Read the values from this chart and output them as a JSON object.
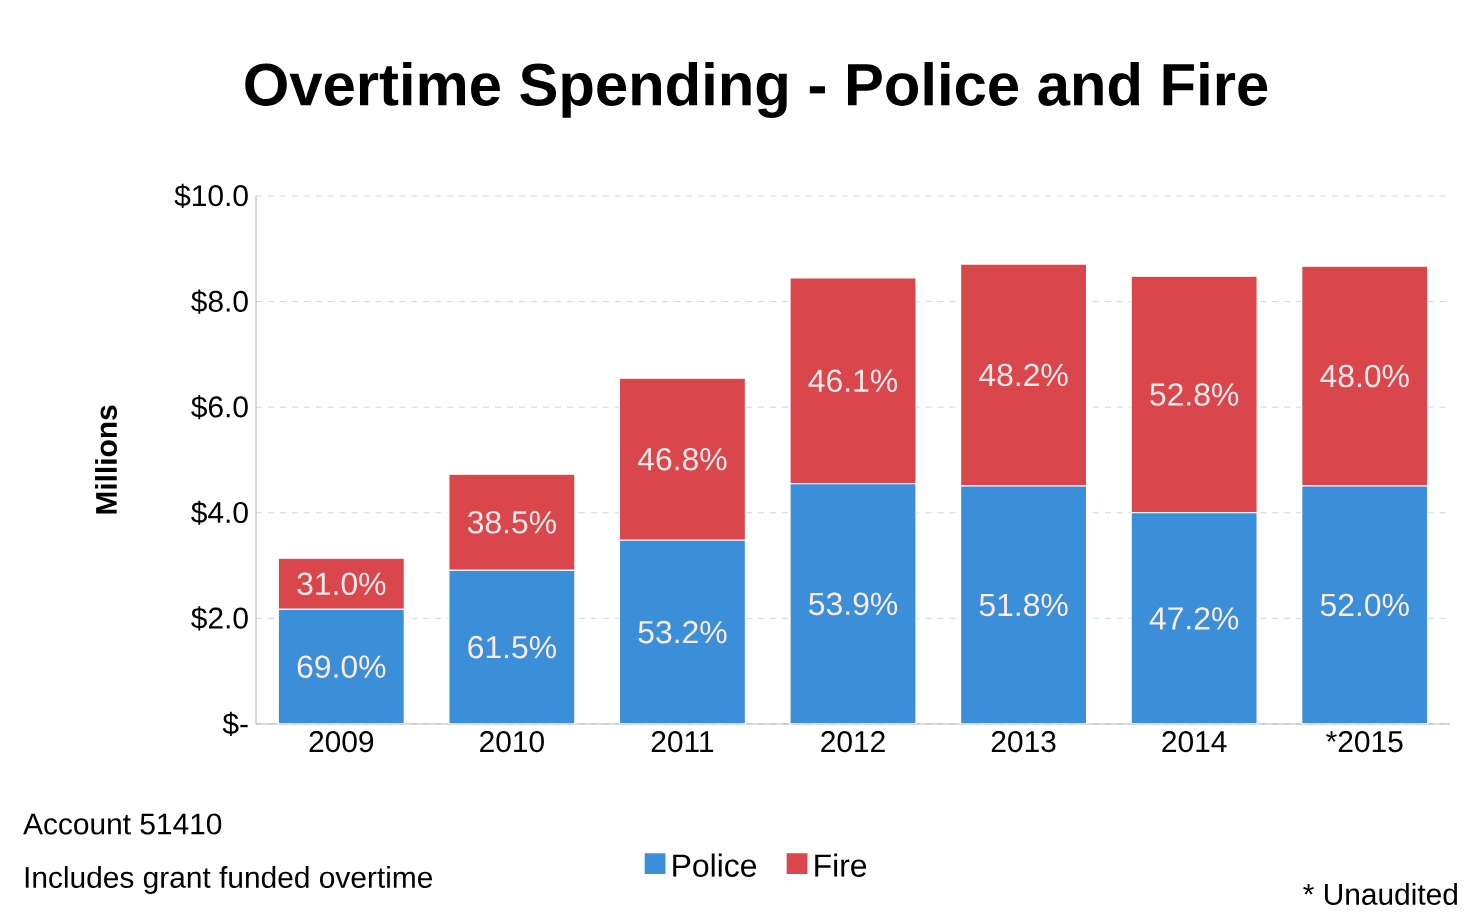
{
  "chart_data": {
    "type": "bar",
    "stacked": true,
    "title": "Overtime Spending - Police and Fire",
    "ylabel": "Millions",
    "categories": [
      "2009",
      "2010",
      "2011",
      "2012",
      "2013",
      "2014",
      "*2015"
    ],
    "series": [
      {
        "name": "Police",
        "color": "#3a8fd8",
        "values": [
          2.17,
          2.91,
          3.48,
          4.55,
          4.51,
          4.0,
          4.51
        ]
      },
      {
        "name": "Fire",
        "color": "#d9464b",
        "values": [
          0.97,
          1.82,
          3.07,
          3.9,
          4.2,
          4.48,
          4.16
        ]
      }
    ],
    "ylim": [
      0,
      10
    ],
    "yticks": [
      {
        "value": 0,
        "label": "$-"
      },
      {
        "value": 2,
        "label": "$2.0"
      },
      {
        "value": 4,
        "label": "$4.0"
      },
      {
        "value": 6,
        "label": "$6.0"
      },
      {
        "value": 8,
        "label": "$8.0"
      },
      {
        "value": 10,
        "label": "$10.0"
      }
    ],
    "grid": "y",
    "legend": "bottom",
    "annotations": [
      "Account 51410",
      "Includes grant funded overtime",
      "* Unaudited",
      "69.0%",
      "61.5%",
      "53.2%",
      "53.9%",
      "51.8%",
      "47.2%",
      "52.0%",
      "31.0%",
      "38.5%",
      "46.8%",
      "46.1%",
      "48.2%",
      "52.8%",
      "48.0%"
    ]
  }
}
